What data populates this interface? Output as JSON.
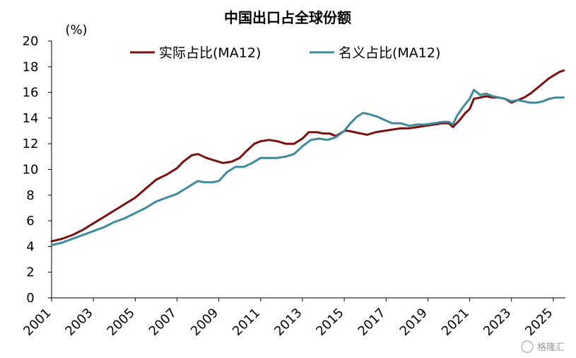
{
  "chart_data": {
    "type": "line",
    "title": "中国出口占全球份额",
    "ylabel": "(%)",
    "xlabel": "",
    "ylim": [
      0,
      20
    ],
    "yticks": [
      0,
      2,
      4,
      6,
      8,
      10,
      12,
      14,
      16,
      18,
      20
    ],
    "xlim": [
      2001,
      2025.58
    ],
    "xticks": [
      2001,
      2003,
      2005,
      2007,
      2009,
      2011,
      2013,
      2015,
      2017,
      2019,
      2021,
      2023,
      2025
    ],
    "legend_position": "top",
    "grid": false,
    "series": [
      {
        "name": "实际占比(MA12)",
        "color": "#7b1010",
        "points": [
          [
            2001.0,
            4.4
          ],
          [
            2001.5,
            4.6
          ],
          [
            2002.0,
            4.9
          ],
          [
            2002.5,
            5.3
          ],
          [
            2003.0,
            5.8
          ],
          [
            2003.5,
            6.3
          ],
          [
            2004.0,
            6.8
          ],
          [
            2004.5,
            7.3
          ],
          [
            2005.0,
            7.8
          ],
          [
            2005.5,
            8.5
          ],
          [
            2006.0,
            9.2
          ],
          [
            2006.5,
            9.6
          ],
          [
            2007.0,
            10.1
          ],
          [
            2007.3,
            10.6
          ],
          [
            2007.7,
            11.1
          ],
          [
            2008.0,
            11.2
          ],
          [
            2008.4,
            10.9
          ],
          [
            2008.8,
            10.7
          ],
          [
            2009.2,
            10.5
          ],
          [
            2009.6,
            10.6
          ],
          [
            2010.0,
            10.9
          ],
          [
            2010.3,
            11.4
          ],
          [
            2010.7,
            12.0
          ],
          [
            2011.0,
            12.2
          ],
          [
            2011.4,
            12.3
          ],
          [
            2011.8,
            12.2
          ],
          [
            2012.2,
            12.0
          ],
          [
            2012.6,
            12.0
          ],
          [
            2013.0,
            12.4
          ],
          [
            2013.3,
            12.9
          ],
          [
            2013.7,
            12.9
          ],
          [
            2014.0,
            12.8
          ],
          [
            2014.3,
            12.8
          ],
          [
            2014.6,
            12.6
          ],
          [
            2015.0,
            13.0
          ],
          [
            2015.2,
            13.0
          ],
          [
            2015.5,
            12.9
          ],
          [
            2015.8,
            12.8
          ],
          [
            2016.1,
            12.7
          ],
          [
            2016.5,
            12.9
          ],
          [
            2016.9,
            13.0
          ],
          [
            2017.3,
            13.1
          ],
          [
            2017.7,
            13.2
          ],
          [
            2018.1,
            13.2
          ],
          [
            2018.5,
            13.3
          ],
          [
            2018.9,
            13.4
          ],
          [
            2019.3,
            13.5
          ],
          [
            2019.7,
            13.6
          ],
          [
            2020.0,
            13.6
          ],
          [
            2020.2,
            13.3
          ],
          [
            2020.5,
            13.8
          ],
          [
            2020.8,
            14.4
          ],
          [
            2021.0,
            14.7
          ],
          [
            2021.2,
            15.5
          ],
          [
            2021.5,
            15.6
          ],
          [
            2021.8,
            15.7
          ],
          [
            2022.1,
            15.6
          ],
          [
            2022.4,
            15.6
          ],
          [
            2022.7,
            15.5
          ],
          [
            2023.0,
            15.2
          ],
          [
            2023.3,
            15.4
          ],
          [
            2023.6,
            15.6
          ],
          [
            2023.9,
            15.9
          ],
          [
            2024.2,
            16.3
          ],
          [
            2024.5,
            16.7
          ],
          [
            2024.8,
            17.1
          ],
          [
            2025.1,
            17.4
          ],
          [
            2025.3,
            17.6
          ],
          [
            2025.5,
            17.7
          ]
        ]
      },
      {
        "name": "名义占比(MA12)",
        "color": "#3e8a9a",
        "points": [
          [
            2001.0,
            4.1
          ],
          [
            2001.5,
            4.3
          ],
          [
            2002.0,
            4.6
          ],
          [
            2002.5,
            4.9
          ],
          [
            2003.0,
            5.2
          ],
          [
            2003.5,
            5.5
          ],
          [
            2004.0,
            5.9
          ],
          [
            2004.5,
            6.2
          ],
          [
            2005.0,
            6.6
          ],
          [
            2005.5,
            7.0
          ],
          [
            2006.0,
            7.5
          ],
          [
            2006.5,
            7.8
          ],
          [
            2007.0,
            8.1
          ],
          [
            2007.5,
            8.6
          ],
          [
            2008.0,
            9.1
          ],
          [
            2008.3,
            9.0
          ],
          [
            2008.7,
            9.0
          ],
          [
            2009.0,
            9.1
          ],
          [
            2009.4,
            9.8
          ],
          [
            2009.8,
            10.2
          ],
          [
            2010.2,
            10.2
          ],
          [
            2010.6,
            10.5
          ],
          [
            2011.0,
            10.9
          ],
          [
            2011.4,
            10.9
          ],
          [
            2011.8,
            10.9
          ],
          [
            2012.2,
            11.0
          ],
          [
            2012.6,
            11.2
          ],
          [
            2013.0,
            11.8
          ],
          [
            2013.4,
            12.3
          ],
          [
            2013.8,
            12.4
          ],
          [
            2014.2,
            12.3
          ],
          [
            2014.6,
            12.5
          ],
          [
            2015.0,
            13.0
          ],
          [
            2015.3,
            13.6
          ],
          [
            2015.6,
            14.1
          ],
          [
            2015.9,
            14.4
          ],
          [
            2016.2,
            14.3
          ],
          [
            2016.6,
            14.1
          ],
          [
            2017.0,
            13.8
          ],
          [
            2017.3,
            13.6
          ],
          [
            2017.7,
            13.6
          ],
          [
            2018.1,
            13.4
          ],
          [
            2018.5,
            13.5
          ],
          [
            2018.9,
            13.5
          ],
          [
            2019.3,
            13.6
          ],
          [
            2019.7,
            13.7
          ],
          [
            2020.0,
            13.7
          ],
          [
            2020.2,
            13.5
          ],
          [
            2020.4,
            14.2
          ],
          [
            2020.7,
            14.9
          ],
          [
            2021.0,
            15.5
          ],
          [
            2021.2,
            16.2
          ],
          [
            2021.5,
            15.8
          ],
          [
            2021.8,
            15.9
          ],
          [
            2022.1,
            15.7
          ],
          [
            2022.4,
            15.6
          ],
          [
            2022.7,
            15.5
          ],
          [
            2023.0,
            15.3
          ],
          [
            2023.3,
            15.4
          ],
          [
            2023.6,
            15.3
          ],
          [
            2023.9,
            15.2
          ],
          [
            2024.2,
            15.2
          ],
          [
            2024.5,
            15.3
          ],
          [
            2024.8,
            15.5
          ],
          [
            2025.1,
            15.6
          ],
          [
            2025.5,
            15.6
          ]
        ]
      }
    ]
  },
  "watermark": "格隆汇"
}
